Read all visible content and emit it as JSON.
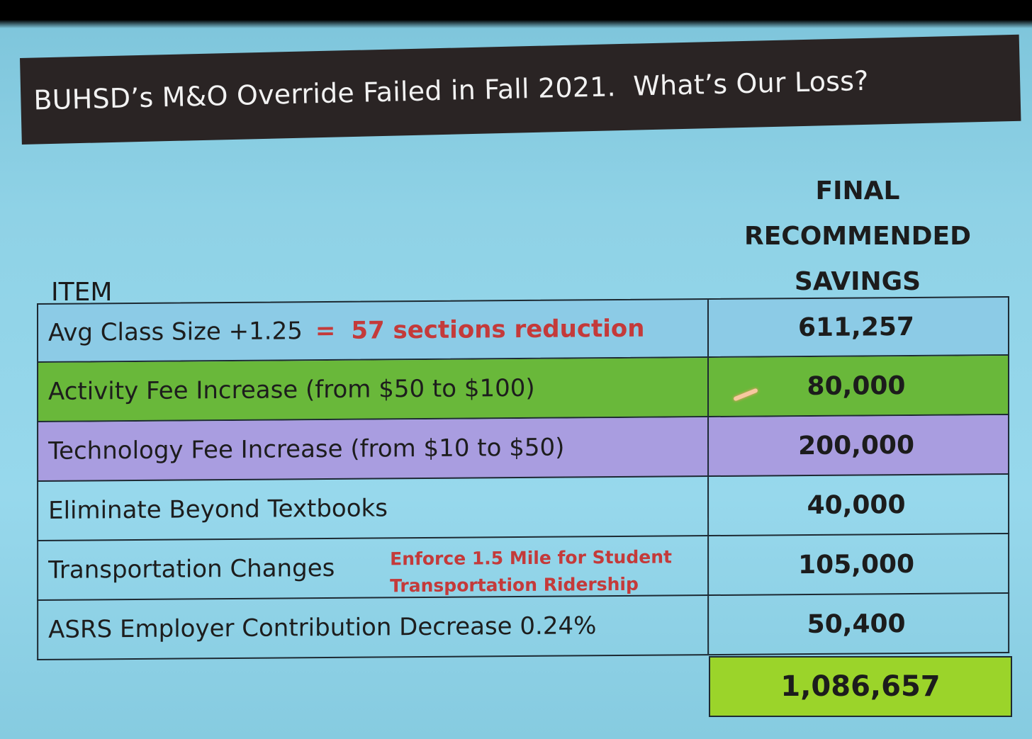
{
  "title": "BUHSD’s M&O Override Failed in Fall 2021.  What’s Our Loss?",
  "headers": {
    "item": "ITEM",
    "savings_line1": "FINAL",
    "savings_line2": "RECOMMENDED",
    "savings_line3": "SAVINGS"
  },
  "rows": [
    {
      "item": "Avg Class Size +1.25",
      "eq": "=",
      "note": "57 sections reduction",
      "value": "611,257",
      "color": "#8ccbe6"
    },
    {
      "item": "Activity Fee Increase (from $50 to $100)",
      "value": "80,000",
      "color": "#69b83a"
    },
    {
      "item": "Technology Fee Increase (from $10 to $50)",
      "value": "200,000",
      "color": "#a99de0"
    },
    {
      "item": "Eliminate Beyond Textbooks",
      "value": "40,000"
    },
    {
      "item": "Transportation Changes",
      "note_line1": "Enforce 1.5 Mile for Student",
      "note_line2": "Transportation Ridership",
      "value": "105,000"
    },
    {
      "item": "ASRS Employer Contribution Decrease 0.24%",
      "value": "50,400"
    }
  ],
  "total": "1,086,657",
  "total_color": "#9bd42a"
}
